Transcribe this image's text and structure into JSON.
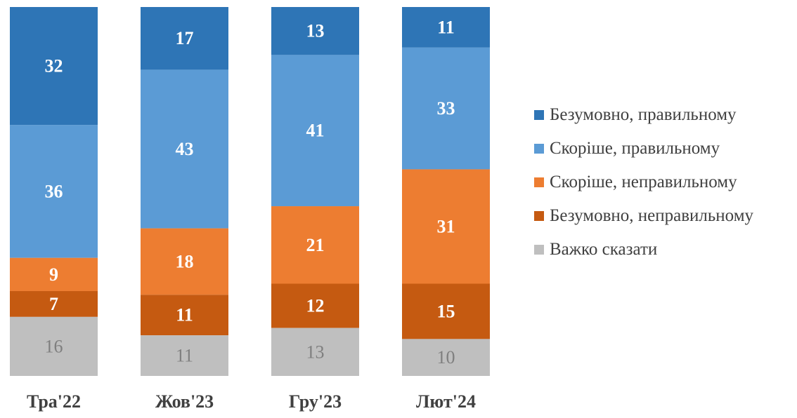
{
  "chart_data": {
    "type": "bar",
    "stacked": true,
    "categories": [
      "Тра'22",
      "Жов'23",
      "Гру'23",
      "Лют'24"
    ],
    "series": [
      {
        "name": "Безумовно, правильному",
        "color": "#2e75b6",
        "label_color": "#ffffff",
        "values": [
          32,
          17,
          13,
          11
        ]
      },
      {
        "name": "Скоріше, правильному",
        "color": "#5b9bd5",
        "label_color": "#ffffff",
        "values": [
          36,
          43,
          41,
          33
        ]
      },
      {
        "name": "Скоріше, неправильному",
        "color": "#ed7d31",
        "label_color": "#ffffff",
        "values": [
          9,
          18,
          21,
          31
        ]
      },
      {
        "name": "Безумовно, неправильному",
        "color": "#c55a11",
        "label_color": "#ffffff",
        "values": [
          7,
          11,
          12,
          15
        ]
      },
      {
        "name": "Важко сказати",
        "color": "#bfbfbf",
        "label_color": "#7f7f7f",
        "values": [
          16,
          11,
          13,
          10
        ]
      }
    ],
    "ylim": [
      0,
      100
    ],
    "grid": false,
    "legend_position": "right",
    "title": "",
    "xlabel": "",
    "ylabel": ""
  }
}
